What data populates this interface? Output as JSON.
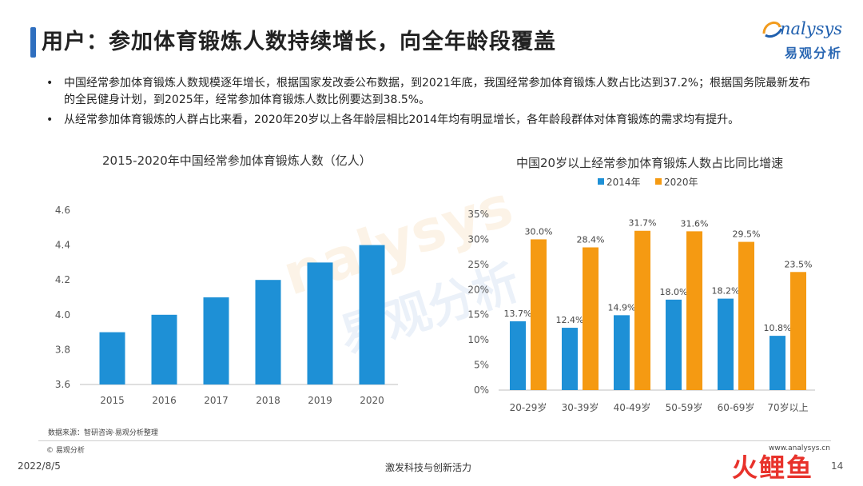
{
  "header": {
    "title": "用户：参加体育锻炼人数持续增长，向全年龄段覆盖",
    "logo_en": "nalysys",
    "logo_cn": "易观分析"
  },
  "bullets": [
    "中国经常参加体育锻炼人数规模逐年增长，根据国家发改委公布数据，到2021年底，我国经常参加体育锻炼人数占比达到37.2%；根据国务院最新发布的全民健身计划，到2025年，经常参加体育锻炼人数比例要达到38.5%。",
    "从经常参加体育锻炼的人群占比来看，2020年20岁以上各年龄层相比2014年均有明显增长，各年龄段群体对体育锻炼的需求均有提升。"
  ],
  "watermark": {
    "en": "nalysys",
    "cn": "易观分析"
  },
  "colors": {
    "blue": "#1e90d6",
    "orange": "#f59a12",
    "accent": "#2f6fbf"
  },
  "chart_data": [
    {
      "type": "bar",
      "title": "2015-2020年中国经常参加体育锻炼人数（亿人）",
      "categories": [
        "2015",
        "2016",
        "2017",
        "2018",
        "2019",
        "2020"
      ],
      "values": [
        3.9,
        4.0,
        4.1,
        4.2,
        4.3,
        4.4
      ],
      "ylim": [
        3.6,
        4.6
      ],
      "yticks": [
        "3.6",
        "3.8",
        "4.0",
        "4.2",
        "4.4",
        "4.6"
      ],
      "grid": false
    },
    {
      "type": "bar",
      "title": "中国20岁以上经常参加体育锻炼人数占比同比增速",
      "categories": [
        "20-29岁",
        "30-39岁",
        "40-49岁",
        "50-59岁",
        "60-69岁",
        "70岁以上"
      ],
      "series": [
        {
          "name": "2014年",
          "values": [
            13.7,
            12.4,
            14.9,
            18.0,
            18.2,
            10.8
          ],
          "labels": [
            "13.7%",
            "12.4%",
            "14.9%",
            "18.0%",
            "18.2%",
            "10.8%"
          ]
        },
        {
          "name": "2020年",
          "values": [
            30.0,
            28.4,
            31.7,
            31.6,
            29.5,
            23.5
          ],
          "labels": [
            "30.0%",
            "28.4%",
            "31.7%",
            "31.6%",
            "29.5%",
            "23.5%"
          ]
        }
      ],
      "ylim": [
        0,
        35
      ],
      "yticks": [
        "0%",
        "5%",
        "10%",
        "15%",
        "20%",
        "25%",
        "30%",
        "35%"
      ],
      "legend": "top",
      "grid": false
    }
  ],
  "footer": {
    "source": "数据来源：智研咨询·易观分析整理",
    "copyright": "© 易观分析",
    "website": "www.analysys.cn",
    "date": "2022/8/5",
    "center": "激发科技与创新活力",
    "page": "14",
    "brand": "火鲤鱼"
  }
}
